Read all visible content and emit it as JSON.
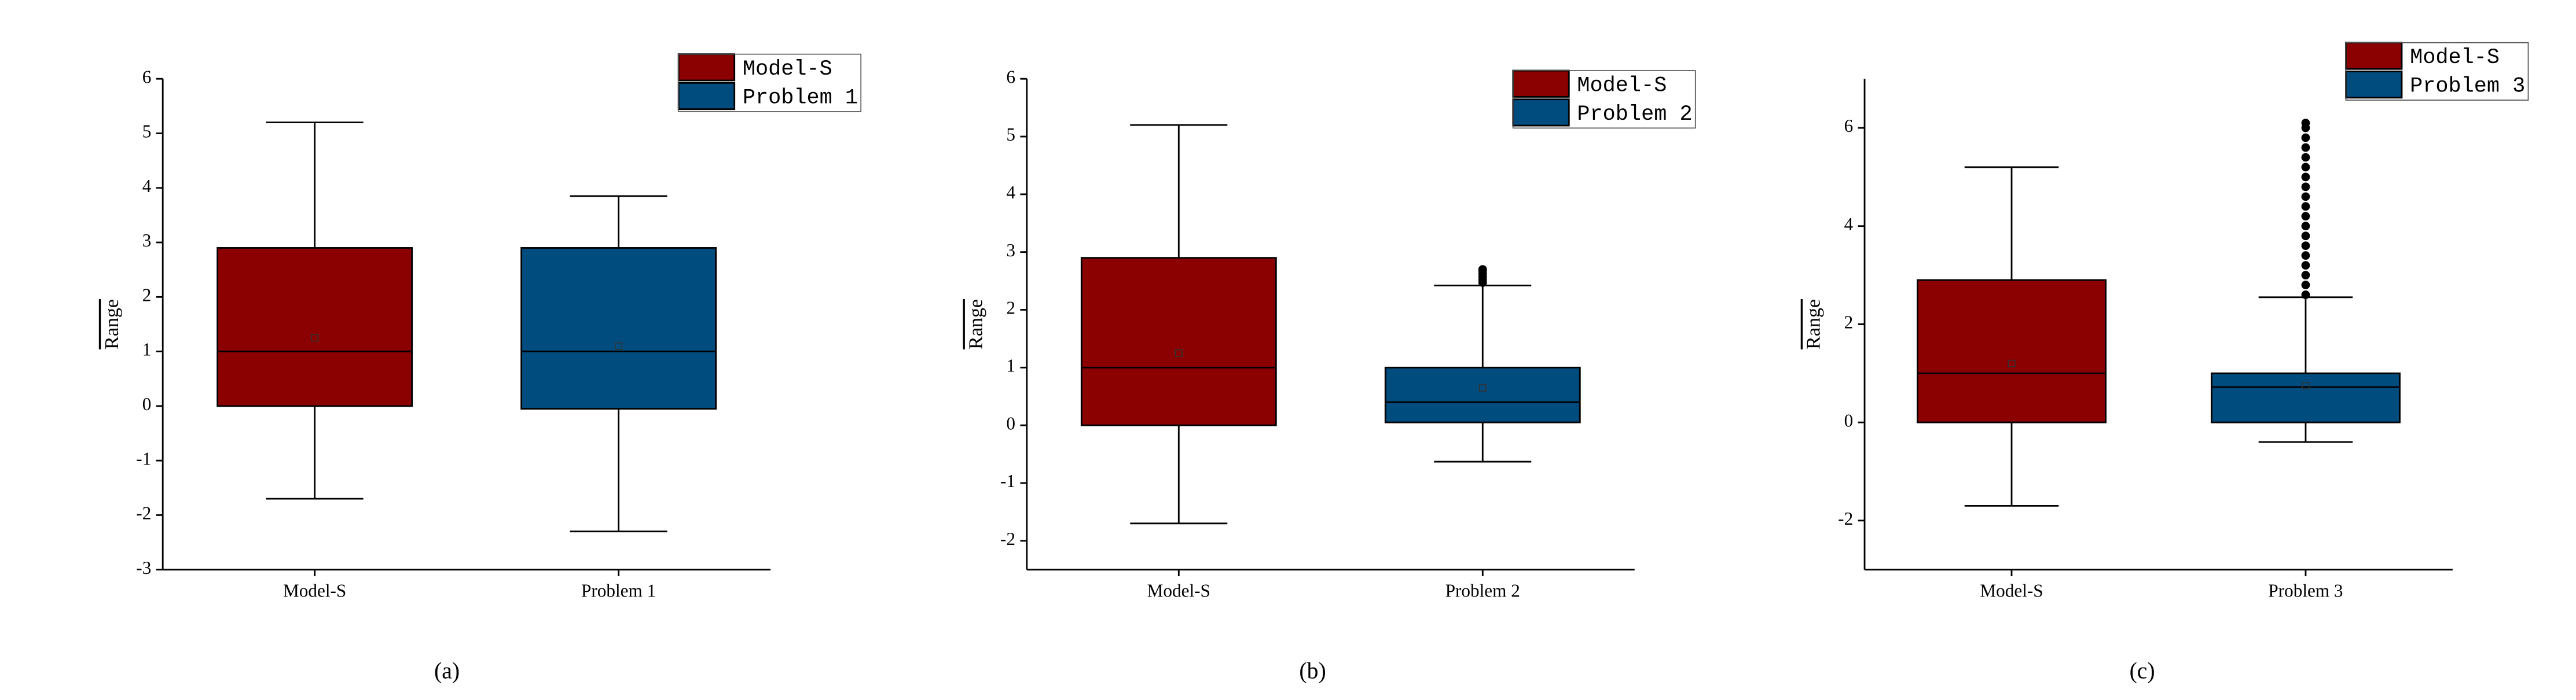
{
  "chart_data": [
    {
      "type": "box",
      "caption": "(a)",
      "ylabel": "Range",
      "categories": [
        "Model-S",
        "Problem 1"
      ],
      "ylim": [
        -3,
        6
      ],
      "yticks": [
        -3,
        -2,
        -1,
        0,
        1,
        2,
        3,
        4,
        5,
        6
      ],
      "series": [
        {
          "name": "Model-S",
          "color": "#8b0000",
          "low": -1.7,
          "q1": 0,
          "median": 1,
          "q3": 2.9,
          "high": 5.2,
          "mean": 1.25,
          "outliers": []
        },
        {
          "name": "Problem 1",
          "color": "#004c7f",
          "low": -2.3,
          "q1": -0.05,
          "median": 1,
          "q3": 2.9,
          "high": 3.85,
          "mean": 1.1,
          "outliers": []
        }
      ]
    },
    {
      "type": "box",
      "caption": "(b)",
      "ylabel": "Range",
      "categories": [
        "Model-S",
        "Problem 2"
      ],
      "ylim": [
        -2.5,
        6
      ],
      "yticks": [
        -2,
        -1,
        0,
        1,
        2,
        3,
        4,
        5,
        6
      ],
      "series": [
        {
          "name": "Model-S",
          "color": "#8b0000",
          "low": -1.7,
          "q1": 0,
          "median": 1,
          "q3": 2.9,
          "high": 5.2,
          "mean": 1.25,
          "outliers": []
        },
        {
          "name": "Problem 2",
          "color": "#004c7f",
          "low": -0.63,
          "q1": 0.05,
          "median": 0.4,
          "q3": 1.0,
          "high": 2.42,
          "mean": 0.65,
          "outliers": [
            2.47,
            2.52,
            2.57,
            2.62,
            2.67,
            2.7
          ]
        }
      ]
    },
    {
      "type": "box",
      "caption": "(c)",
      "ylabel": "Range",
      "categories": [
        "Model-S",
        "Problem 3"
      ],
      "ylim": [
        -3,
        7
      ],
      "yticks": [
        -2,
        0,
        2,
        4,
        6
      ],
      "series": [
        {
          "name": "Model-S",
          "color": "#8b0000",
          "low": -1.7,
          "q1": 0,
          "median": 1,
          "q3": 2.9,
          "high": 5.2,
          "mean": 1.2,
          "outliers": []
        },
        {
          "name": "Problem 3",
          "color": "#004c7f",
          "low": -0.4,
          "q1": 0,
          "median": 0.72,
          "q3": 1.0,
          "high": 2.55,
          "mean": 0.75,
          "outliers": [
            2.6,
            2.8,
            3.0,
            3.2,
            3.4,
            3.6,
            3.8,
            4.0,
            4.2,
            4.4,
            4.6,
            4.8,
            5.0,
            5.2,
            5.4,
            5.6,
            5.8,
            6.0,
            6.1
          ]
        }
      ]
    }
  ]
}
